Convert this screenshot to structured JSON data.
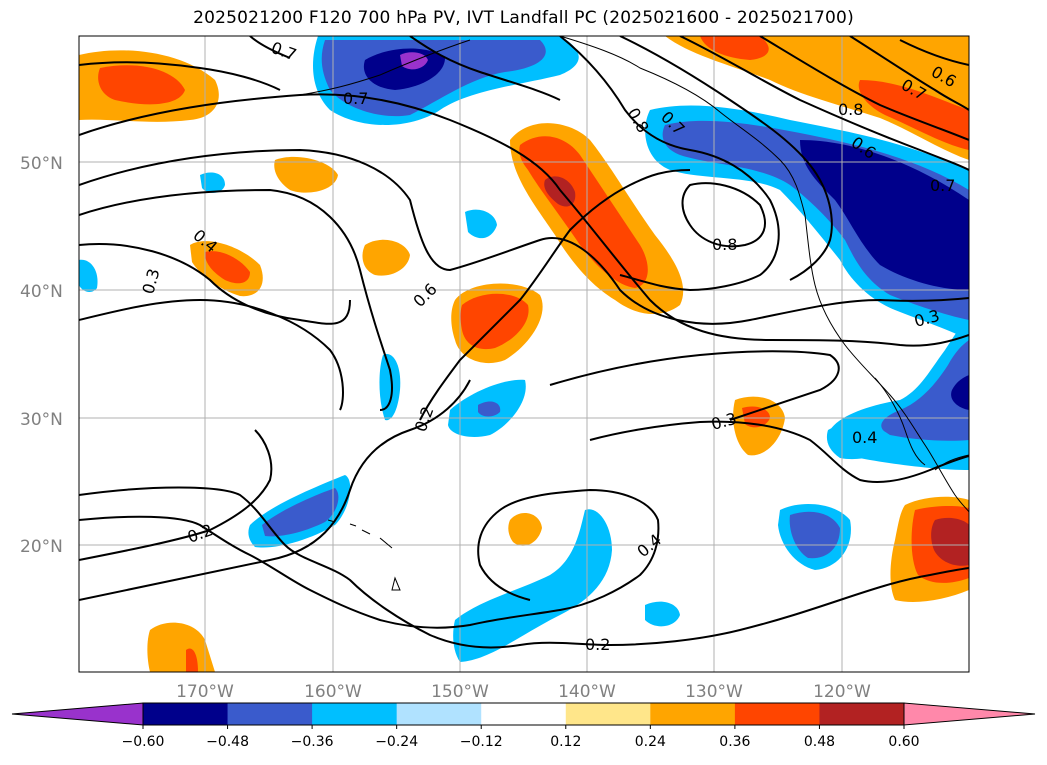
{
  "title": "2025021200 F120 700 hPa PV, IVT Landfall PC (2025021600 - 2025021700)",
  "axes": {
    "lat_labels": [
      "50°N",
      "40°N",
      "30°N",
      "20°N"
    ],
    "lon_labels": [
      "170°W",
      "160°W",
      "150°W",
      "140°W",
      "130°W",
      "120°W"
    ]
  },
  "contour_labels": [
    "0.7",
    "0.7",
    "0.8",
    "0.7",
    "0.6",
    "0.7",
    "0.8",
    "0.6",
    "0.7",
    "0.4",
    "0.3",
    "0.6",
    "0.8",
    "0.3",
    "0.2",
    "0.3",
    "0.4",
    "0.2",
    "0.4",
    "0.2"
  ],
  "colorbar": {
    "tick_labels": [
      "−0.60",
      "−0.48",
      "−0.36",
      "−0.24",
      "−0.12",
      "0.12",
      "0.24",
      "0.36",
      "0.48",
      "0.60"
    ],
    "colors": [
      "#9932cc",
      "#00008b",
      "#3a5bcc",
      "#00bfff",
      "#b0e2ff",
      "#ffffff",
      "#ffe68a",
      "#ffa500",
      "#ff4500",
      "#b22222",
      "#ff88aa"
    ]
  }
}
